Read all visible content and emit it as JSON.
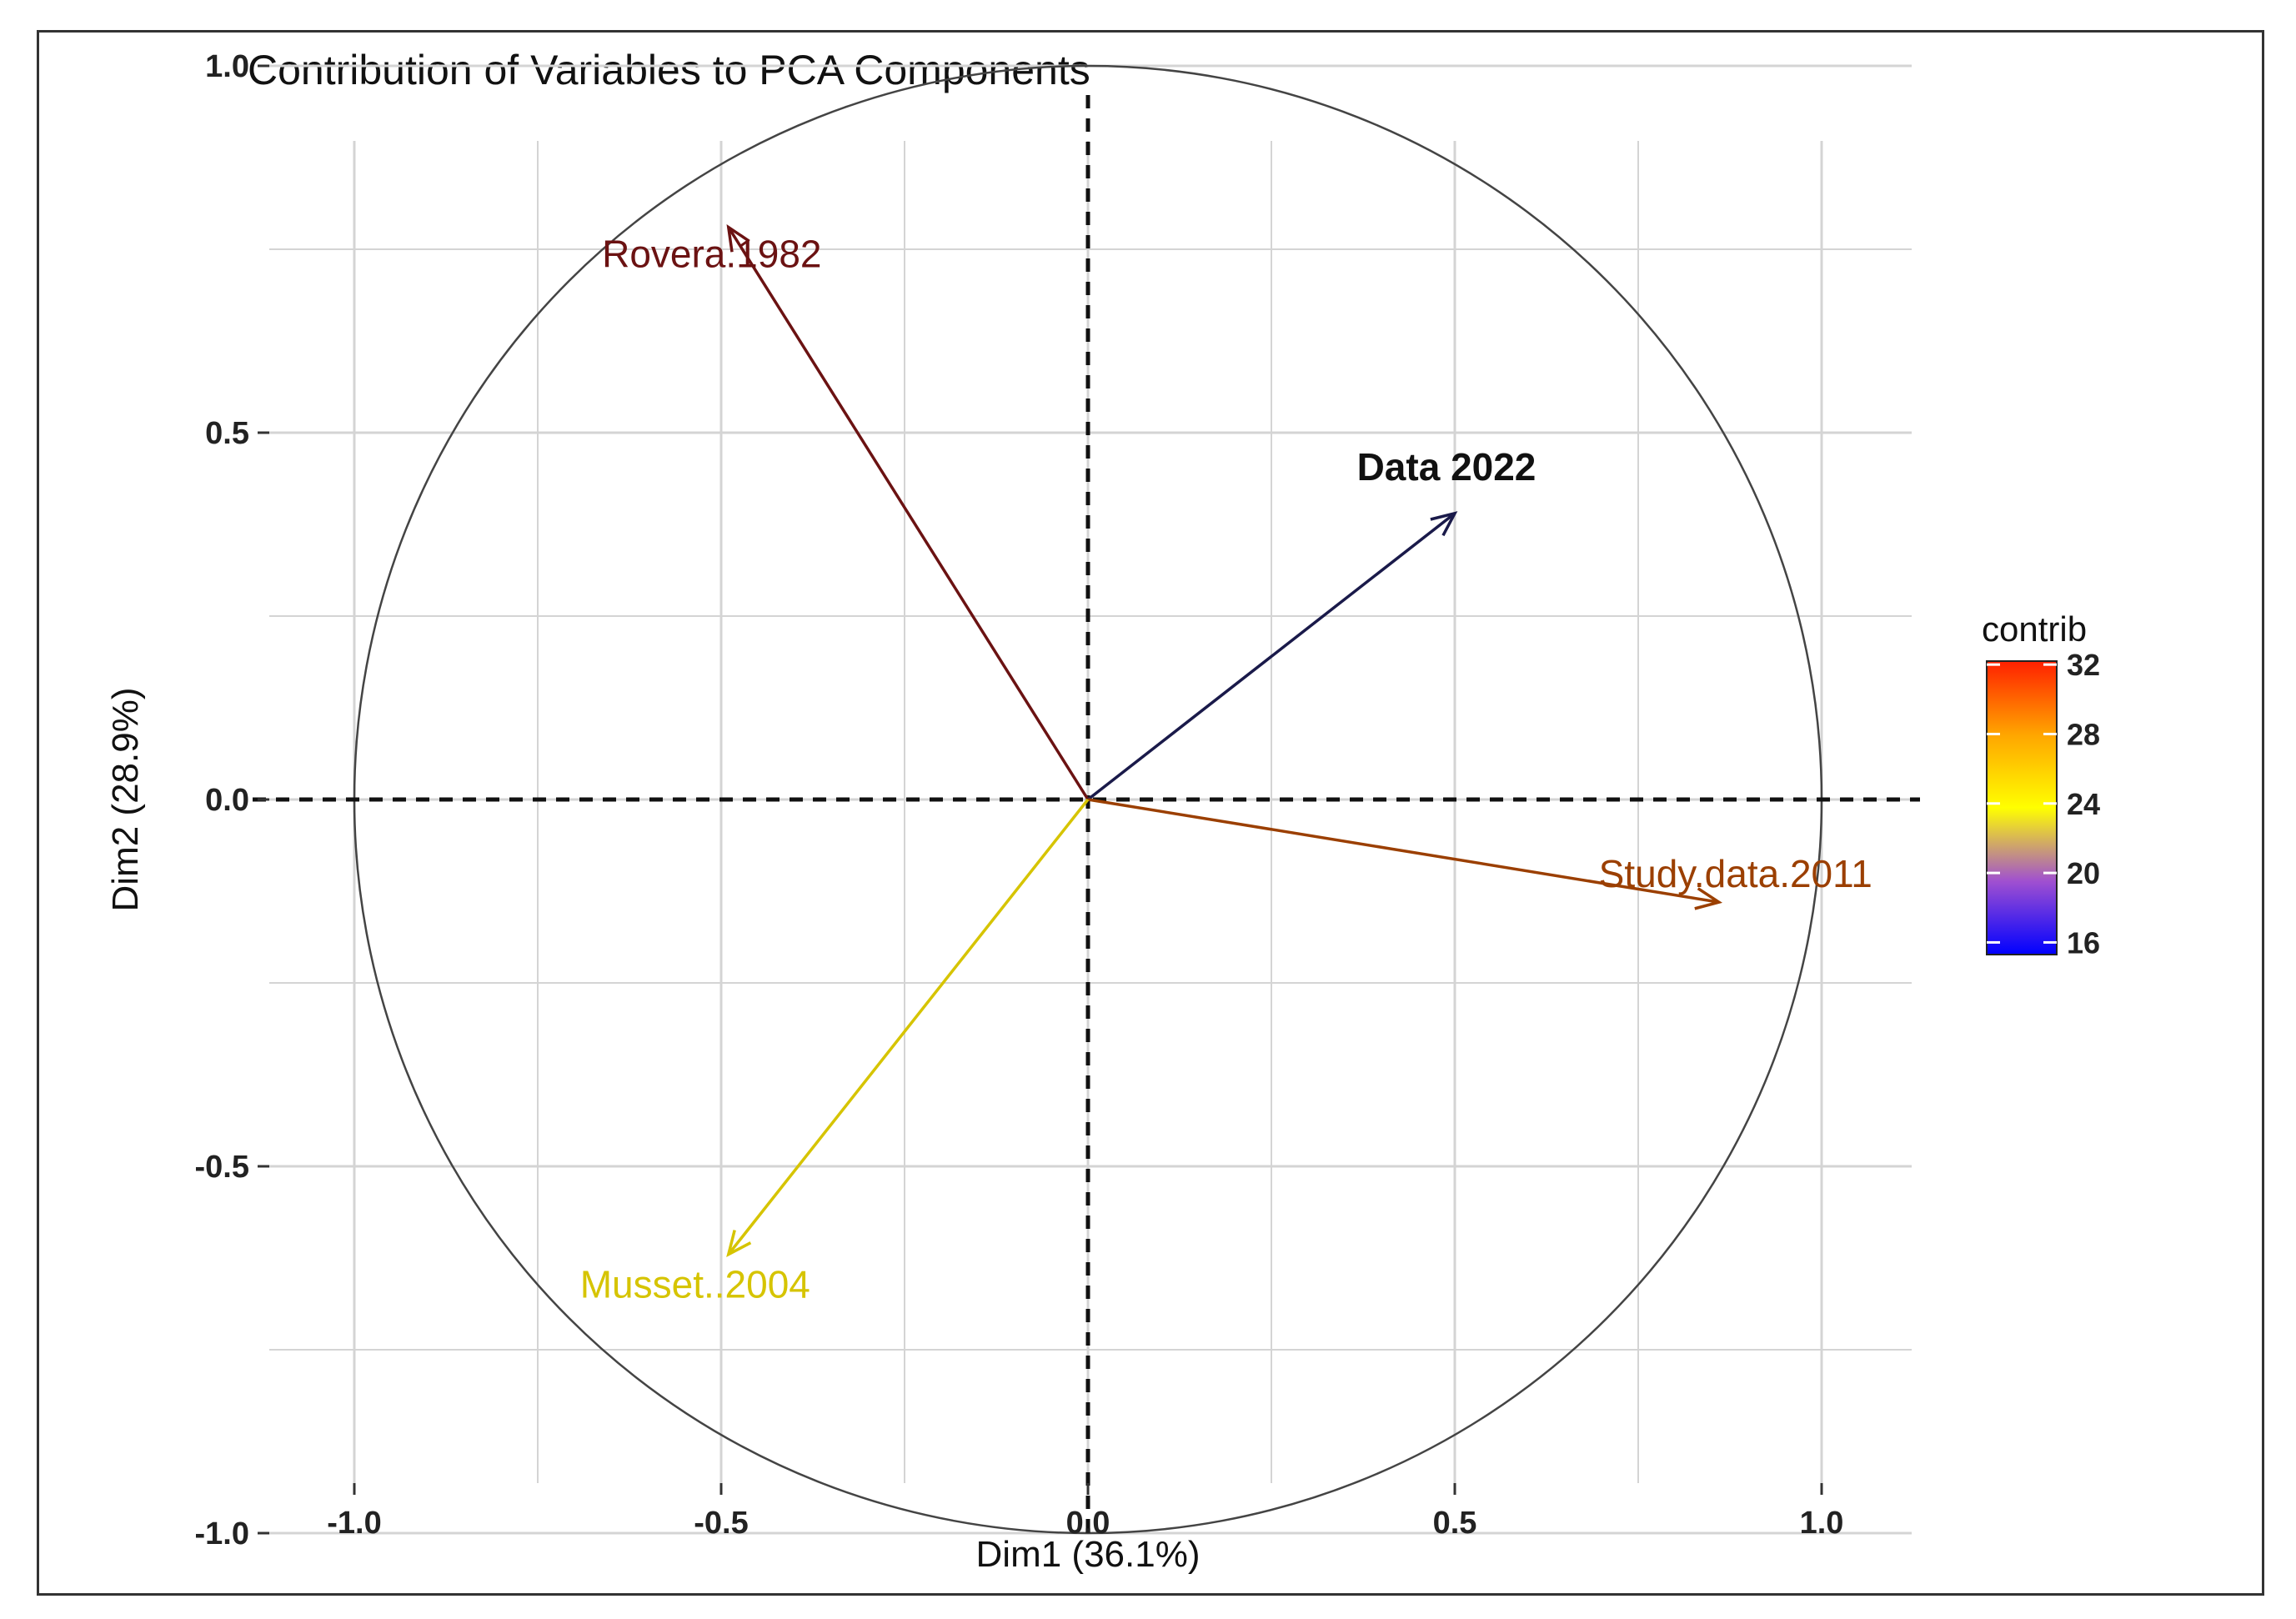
{
  "chart_data": {
    "type": "scatter",
    "subtype": "pca-variable-correlation-circle",
    "title": "Contribution of Variables to PCA Components",
    "xlabel": "Dim1 (36.1%)",
    "ylabel": "Dim2 (28.9%)",
    "xlim": [
      -1.0,
      1.0
    ],
    "ylim": [
      -1.0,
      1.0
    ],
    "x_ticks": [
      -1.0,
      -0.5,
      0.0,
      0.5,
      1.0
    ],
    "y_ticks": [
      -1.0,
      -0.5,
      0.0,
      0.5,
      1.0
    ],
    "x_tick_labels": [
      "-1.0",
      "-0.5",
      "0.0",
      "0.5",
      "1.0"
    ],
    "y_tick_labels": [
      "-1.0",
      "-0.5",
      "0.0",
      "0.5",
      "1.0"
    ],
    "grid": true,
    "unit_circle": true,
    "variables": [
      {
        "name": "Rovera.1982",
        "x": -0.49,
        "y": 0.78,
        "contrib": 31.0,
        "color": "#6b1212"
      },
      {
        "name": "Data 2022",
        "x": 0.5,
        "y": 0.39,
        "contrib": 15.5,
        "color": "#1a1a4a"
      },
      {
        "name": "Study.data.2011",
        "x": 0.86,
        "y": -0.14,
        "contrib": 29.0,
        "color": "#9b3f00"
      },
      {
        "name": "Musset..2004",
        "x": -0.49,
        "y": -0.62,
        "contrib": 24.5,
        "color": "#d6c400"
      }
    ],
    "legend": {
      "title": "contrib",
      "position": "right",
      "min": 15.3,
      "max": 32.2,
      "ticks": [
        16,
        20,
        24,
        28,
        32
      ],
      "tick_labels": [
        "16",
        "20",
        "24",
        "28",
        "32"
      ],
      "gradient": [
        "#0000ff",
        "#a050d0",
        "#ffff00",
        "#ffa500",
        "#ff2000"
      ]
    }
  }
}
